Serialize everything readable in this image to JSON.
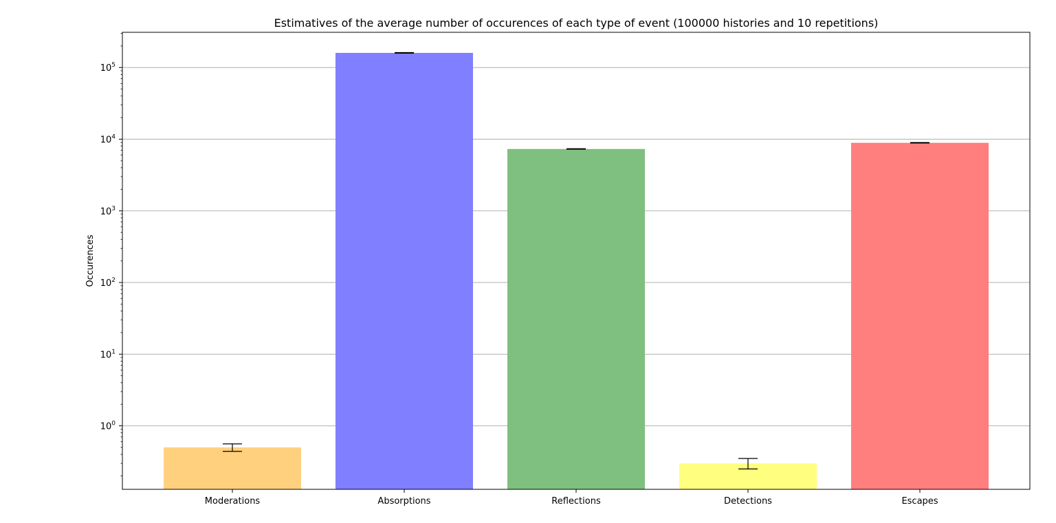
{
  "chart_data": {
    "type": "bar",
    "title": "Estimatives of the average number of occurences of each type of event (100000 histories and 10 repetitions)",
    "xlabel": "",
    "ylabel": "Occurences",
    "yscale": "log",
    "ylim": [
      0.13,
      310000
    ],
    "grid": "y-major",
    "categories": [
      "Moderations",
      "Absorptions",
      "Reflections",
      "Detections",
      "Escapes"
    ],
    "values": [
      0.5,
      160000,
      7300,
      0.3,
      8900
    ],
    "errors": [
      0.06,
      1500,
      60,
      0.05,
      80
    ],
    "colors": [
      "#ffd17f",
      "#7f7fff",
      "#7fbf7f",
      "#ffff7f",
      "#ff7f7f"
    ],
    "ytick_labels": [
      {
        "value": 1,
        "base": "10",
        "exp": "0"
      },
      {
        "value": 10,
        "base": "10",
        "exp": "1"
      },
      {
        "value": 100,
        "base": "10",
        "exp": "2"
      },
      {
        "value": 1000,
        "base": "10",
        "exp": "3"
      },
      {
        "value": 10000,
        "base": "10",
        "exp": "4"
      },
      {
        "value": 100000,
        "base": "10",
        "exp": "5"
      }
    ]
  }
}
